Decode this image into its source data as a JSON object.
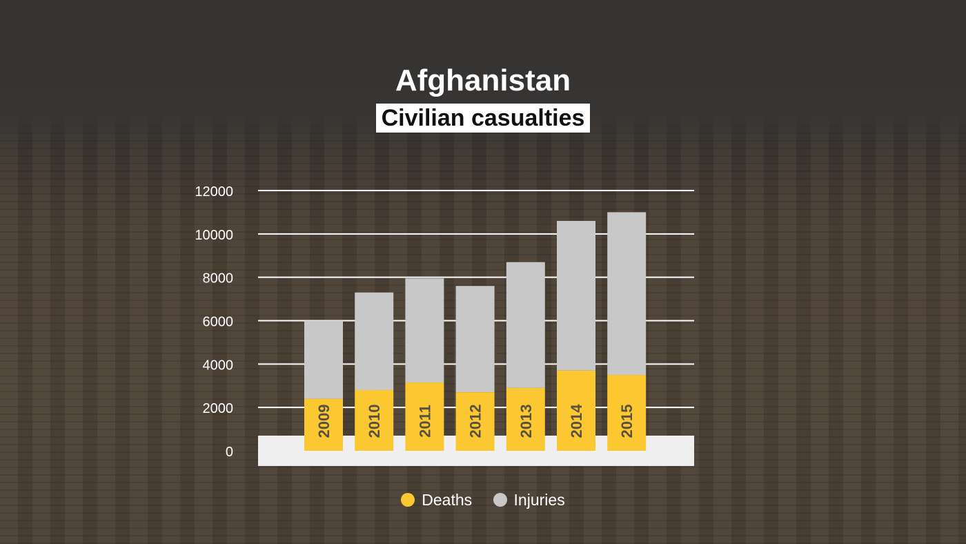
{
  "title": "Afghanistan",
  "subtitle": "Civilian casualties",
  "colors": {
    "deaths": "#fcc832",
    "injuries": "#c8c8c8",
    "grid": "#ffffff",
    "baseline_band": "#efefef"
  },
  "chart_data": {
    "type": "bar",
    "stacked": true,
    "title": "Afghanistan",
    "subtitle": "Civilian casualties",
    "categories": [
      "2009",
      "2010",
      "2011",
      "2012",
      "2013",
      "2014",
      "2015"
    ],
    "series": [
      {
        "name": "Deaths",
        "values": [
          2400,
          2800,
          3150,
          2700,
          2900,
          3700,
          3500
        ]
      },
      {
        "name": "Injuries",
        "values": [
          3600,
          4500,
          4800,
          4900,
          5800,
          6900,
          7500
        ]
      }
    ],
    "ylim": [
      0,
      12000
    ],
    "yticks": [
      "0",
      "2000",
      "4000",
      "6000",
      "8000",
      "10000",
      "12000"
    ],
    "grid": true,
    "legend_position": "bottom"
  },
  "legend": [
    {
      "label": "Deaths",
      "color": "#fcc832"
    },
    {
      "label": "Injuries",
      "color": "#c8c8c8"
    }
  ]
}
